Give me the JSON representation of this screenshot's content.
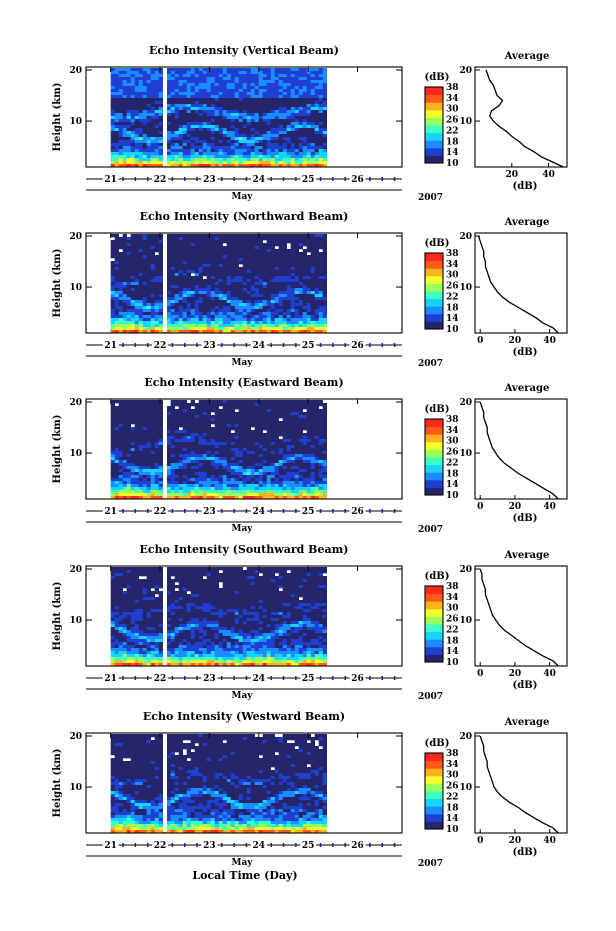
{
  "chart_data": [
    {
      "type": "heatmap",
      "title": "Echo Intensity (Vertical Beam)",
      "ylabel": "Height (km)",
      "yticks": [
        "20",
        "10"
      ],
      "ylim": [
        1,
        20
      ],
      "xticks": [
        "21",
        "22",
        "23",
        "24",
        "25",
        "26"
      ],
      "xlabel_month": "May",
      "year": "2007",
      "xlim": [
        20.5,
        26.9
      ],
      "data_end_day": 25.3,
      "gap_day": 22.1,
      "colorbar": {
        "unit": "(dB)",
        "ticks": [
          "38",
          "34",
          "30",
          "26",
          "22",
          "18",
          "14",
          "10"
        ],
        "range": [
          10,
          38
        ]
      },
      "noise_floor_km": 11,
      "profile": {
        "title": "Average",
        "xlabel": "(dB)",
        "xticks": [
          "20",
          "40"
        ],
        "yticks": [
          "20",
          "10"
        ],
        "xlim": [
          0,
          50
        ],
        "heights_km": [
          1,
          2,
          3,
          4,
          5,
          6,
          7,
          8,
          9,
          10,
          11,
          12,
          13,
          14,
          15,
          16,
          17,
          18,
          19,
          20
        ],
        "values_db": [
          48,
          42,
          36,
          32,
          27,
          24,
          20,
          17,
          13,
          10,
          8,
          9,
          13,
          15,
          12,
          11,
          10,
          8,
          7,
          6
        ]
      }
    },
    {
      "type": "heatmap",
      "title": "Echo Intensity (Northward Beam)",
      "ylabel": "Height (km)",
      "yticks": [
        "20",
        "10"
      ],
      "ylim": [
        1,
        20
      ],
      "xticks": [
        "21",
        "22",
        "23",
        "24",
        "25",
        "26"
      ],
      "xlabel_month": "May",
      "year": "2007",
      "xlim": [
        20.5,
        26.9
      ],
      "data_end_day": 25.3,
      "gap_day": 22.1,
      "colorbar": {
        "unit": "(dB)",
        "ticks": [
          "38",
          "34",
          "30",
          "26",
          "22",
          "18",
          "14",
          "10"
        ],
        "range": [
          10,
          38
        ]
      },
      "noise_floor_km": 20,
      "profile": {
        "title": "Average",
        "xlabel": "(dB)",
        "xticks": [
          "0",
          "20",
          "40"
        ],
        "yticks": [
          "20",
          "10"
        ],
        "xlim": [
          -3,
          50
        ],
        "heights_km": [
          1,
          2,
          3,
          4,
          5,
          6,
          7,
          8,
          9,
          10,
          11,
          12,
          13,
          14,
          15,
          16,
          17,
          18,
          19,
          20
        ],
        "values_db": [
          45,
          42,
          36,
          32,
          27,
          22,
          17,
          13,
          10,
          8,
          6,
          5,
          4,
          3,
          3,
          2,
          2,
          1,
          0,
          -1
        ]
      }
    },
    {
      "type": "heatmap",
      "title": "Echo Intensity (Eastward Beam)",
      "ylabel": "Height (km)",
      "yticks": [
        "20",
        "10"
      ],
      "ylim": [
        1,
        20
      ],
      "xticks": [
        "21",
        "22",
        "23",
        "24",
        "25",
        "26"
      ],
      "xlabel_month": "May",
      "year": "2007",
      "xlim": [
        20.5,
        26.9
      ],
      "data_end_day": 25.3,
      "gap_day": 22.1,
      "colorbar": {
        "unit": "(dB)",
        "ticks": [
          "38",
          "34",
          "30",
          "26",
          "22",
          "18",
          "14",
          "10"
        ],
        "range": [
          10,
          38
        ]
      },
      "noise_floor_km": 20,
      "profile": {
        "title": "Average",
        "xlabel": "(dB)",
        "xticks": [
          "0",
          "20",
          "40"
        ],
        "yticks": [
          "20",
          "10"
        ],
        "xlim": [
          -3,
          50
        ],
        "heights_km": [
          1,
          2,
          3,
          4,
          5,
          6,
          7,
          8,
          9,
          10,
          11,
          12,
          13,
          14,
          15,
          16,
          17,
          18,
          19,
          20
        ],
        "values_db": [
          45,
          42,
          37,
          32,
          27,
          22,
          18,
          14,
          11,
          9,
          7,
          6,
          5,
          4,
          4,
          3,
          2,
          2,
          1,
          0
        ]
      }
    },
    {
      "type": "heatmap",
      "title": "Echo Intensity (Southward Beam)",
      "ylabel": "Height (km)",
      "yticks": [
        "20",
        "10"
      ],
      "ylim": [
        1,
        20
      ],
      "xticks": [
        "21",
        "22",
        "23",
        "24",
        "25",
        "26"
      ],
      "xlabel_month": "May",
      "year": "2007",
      "xlim": [
        20.5,
        26.9
      ],
      "data_end_day": 25.3,
      "gap_day": 22.1,
      "colorbar": {
        "unit": "(dB)",
        "ticks": [
          "38",
          "34",
          "30",
          "26",
          "22",
          "18",
          "14",
          "10"
        ],
        "range": [
          10,
          38
        ]
      },
      "noise_floor_km": 20,
      "profile": {
        "title": "Average",
        "xlabel": "(dB)",
        "xticks": [
          "0",
          "20",
          "40"
        ],
        "yticks": [
          "20",
          "10"
        ],
        "xlim": [
          -3,
          50
        ],
        "heights_km": [
          1,
          2,
          3,
          4,
          5,
          6,
          7,
          8,
          9,
          10,
          11,
          12,
          13,
          14,
          15,
          16,
          17,
          18,
          19,
          20
        ],
        "values_db": [
          45,
          42,
          36,
          31,
          26,
          22,
          18,
          14,
          11,
          9,
          7,
          6,
          5,
          4,
          3,
          3,
          2,
          1,
          1,
          0
        ]
      }
    },
    {
      "type": "heatmap",
      "title": "Echo Intensity (Westward Beam)",
      "ylabel": "Height (km)",
      "yticks": [
        "20",
        "10"
      ],
      "ylim": [
        1,
        20
      ],
      "xticks": [
        "21",
        "22",
        "23",
        "24",
        "25",
        "26"
      ],
      "xlabel_month": "May",
      "year": "2007",
      "xlim": [
        20.5,
        26.9
      ],
      "data_end_day": 25.3,
      "gap_day": 22.1,
      "colorbar": {
        "unit": "(dB)",
        "ticks": [
          "38",
          "34",
          "30",
          "26",
          "22",
          "18",
          "14",
          "10"
        ],
        "range": [
          10,
          38
        ]
      },
      "noise_floor_km": 20,
      "profile": {
        "title": "Average",
        "xlabel": "(dB)",
        "xticks": [
          "0",
          "20",
          "40"
        ],
        "yticks": [
          "20",
          "10"
        ],
        "xlim": [
          -3,
          50
        ],
        "heights_km": [
          1,
          2,
          3,
          4,
          5,
          6,
          7,
          8,
          9,
          10,
          11,
          12,
          13,
          14,
          15,
          16,
          17,
          18,
          19,
          20
        ],
        "values_db": [
          45,
          42,
          36,
          31,
          26,
          22,
          17,
          13,
          10,
          8,
          7,
          6,
          5,
          4,
          4,
          3,
          2,
          2,
          1,
          0
        ]
      }
    }
  ],
  "common_xlabel": "Local Time (Day)",
  "colormap": [
    "#25256b",
    "#1f3fd0",
    "#1a8cff",
    "#15d4ff",
    "#3dffc4",
    "#9bff5c",
    "#f2ff2a",
    "#ffb21c",
    "#ff5a1a",
    "#ff2a1f"
  ]
}
